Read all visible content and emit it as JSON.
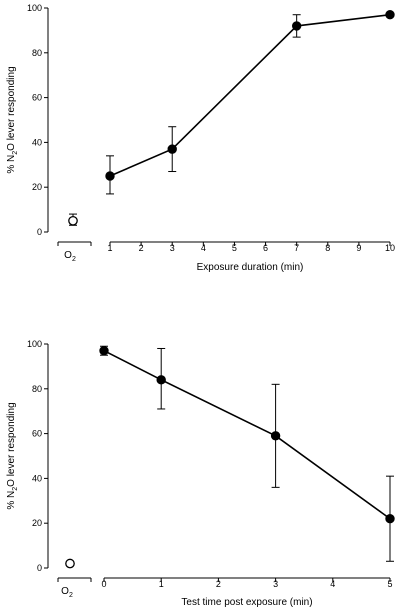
{
  "chart_data": [
    {
      "type": "line",
      "xlabel": "Exposure duration (min)",
      "ylabel_prefix": "% N",
      "ylabel_sub": "2",
      "ylabel_suffix": "O lever responding",
      "xlim": [
        1,
        10
      ],
      "ylim": [
        0,
        100
      ],
      "xticks": [
        1,
        2,
        3,
        4,
        5,
        6,
        7,
        8,
        9,
        10
      ],
      "yticks": [
        0,
        20,
        40,
        60,
        80,
        100
      ],
      "control": {
        "label_main": "O",
        "label_sub": "2",
        "y": 5,
        "err_low": 3,
        "err_high": 8
      },
      "series": [
        {
          "x": [
            1,
            3,
            7,
            10
          ],
          "y": [
            25,
            37,
            92,
            97
          ],
          "err_low": [
            17,
            27,
            87,
            97
          ],
          "err_high": [
            34,
            47,
            97,
            97
          ]
        }
      ]
    },
    {
      "type": "line",
      "xlabel": "Test time post exposure (min)",
      "ylabel_prefix": "% N",
      "ylabel_sub": "2",
      "ylabel_suffix": "O lever responding",
      "xlim": [
        0,
        5
      ],
      "ylim": [
        0,
        100
      ],
      "xticks": [
        0,
        1,
        2,
        3,
        4,
        5
      ],
      "yticks": [
        0,
        20,
        40,
        60,
        80,
        100
      ],
      "control": {
        "label_main": "O",
        "label_sub": "2",
        "y": 2,
        "err_low": 2,
        "err_high": 2
      },
      "series": [
        {
          "x": [
            0,
            1,
            3,
            5
          ],
          "y": [
            97,
            84,
            59,
            22
          ],
          "err_low": [
            95,
            71,
            36,
            3
          ],
          "err_high": [
            99,
            98,
            82,
            41
          ]
        }
      ]
    }
  ]
}
